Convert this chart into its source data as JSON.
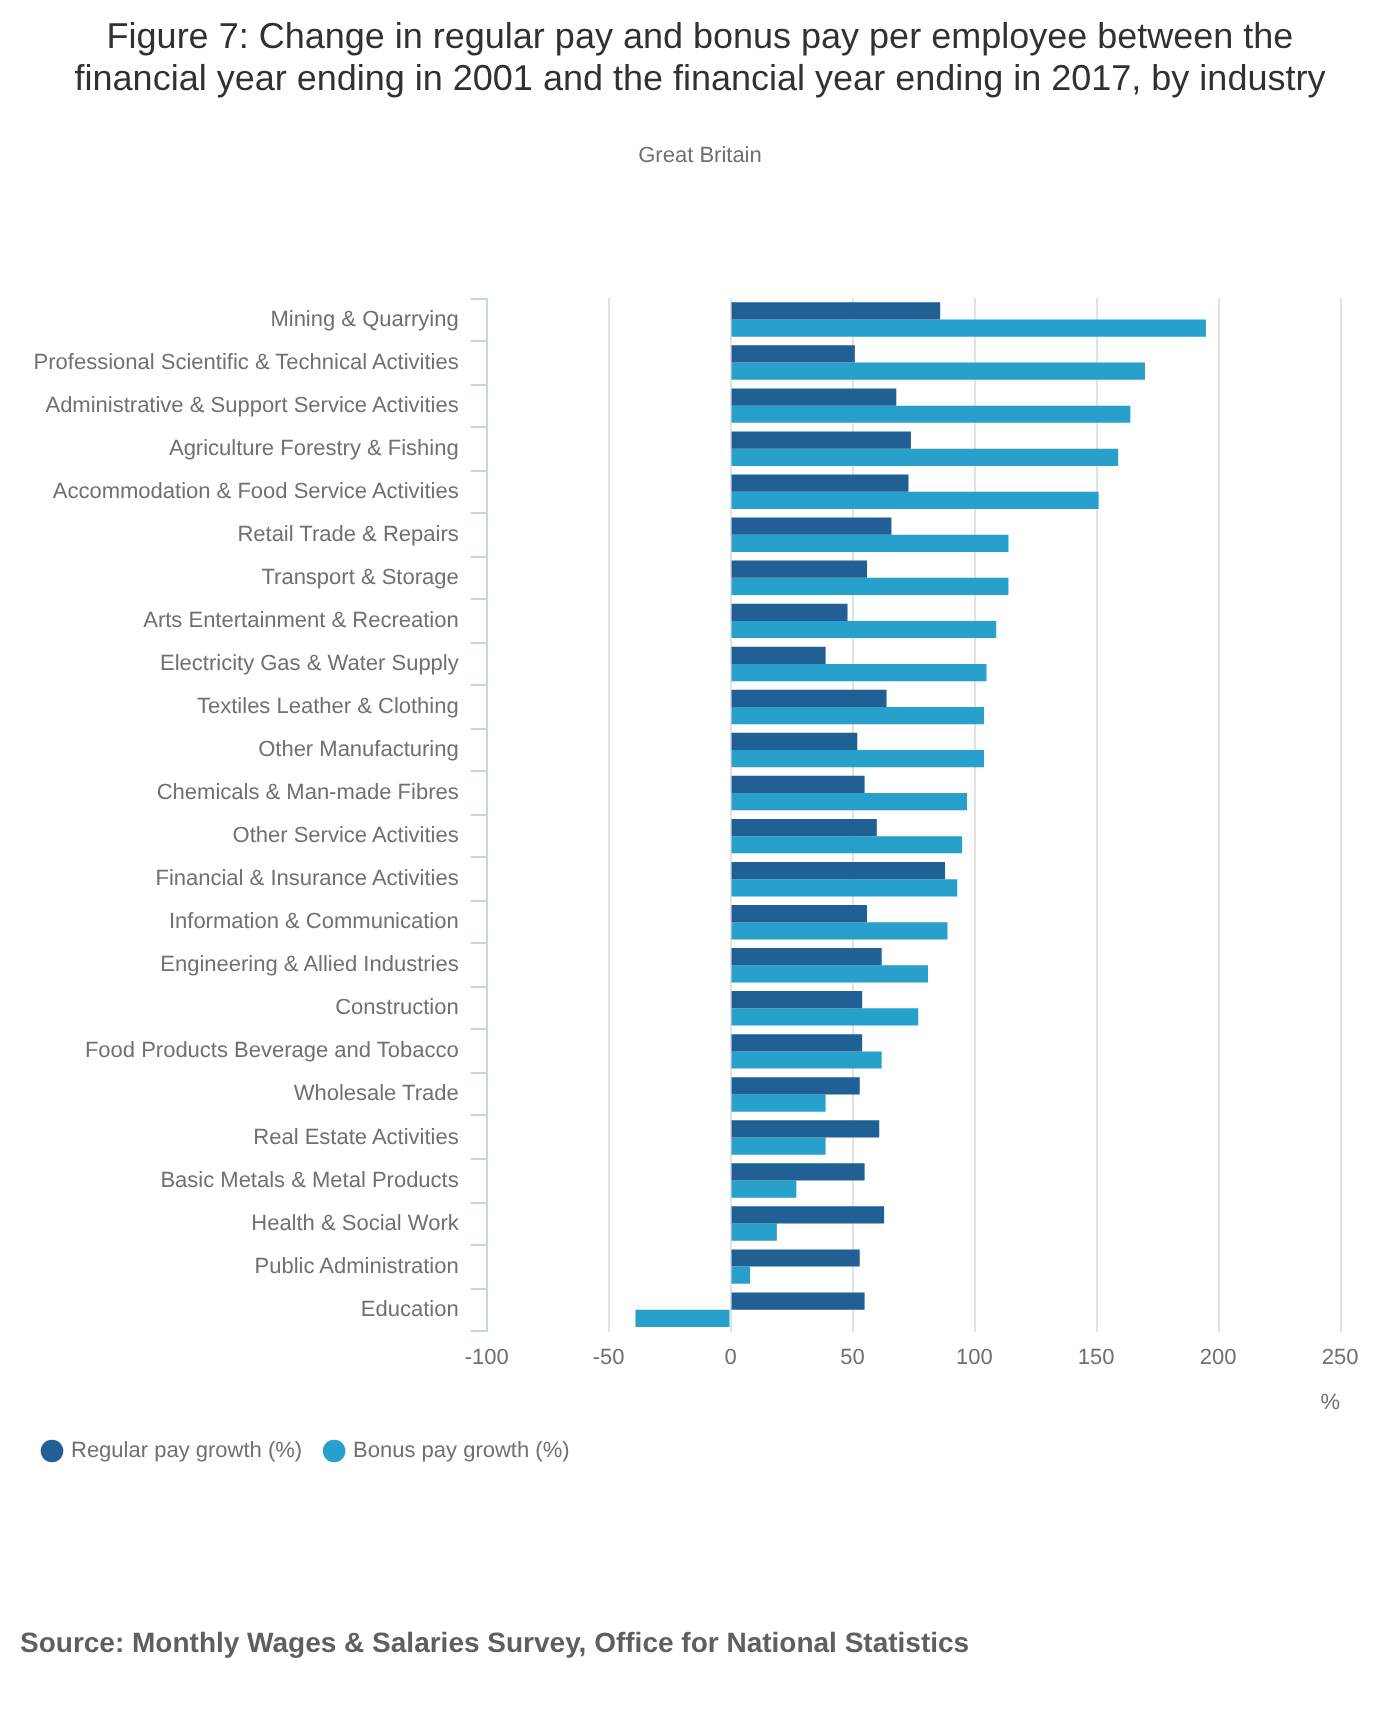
{
  "chart_data": {
    "type": "bar",
    "orientation": "horizontal",
    "title": "Figure 7: Change in regular pay and bonus pay per employee between the financial year ending in 2001 and the financial year ending in 2017, by industry",
    "subtitle": "Great Britain",
    "xlabel": "%",
    "categories": [
      "Mining & Quarrying",
      "Professional Scientific & Technical Activities",
      "Administrative & Support Service Activities",
      "Agriculture Forestry & Fishing",
      "Accommodation & Food Service Activities",
      "Retail Trade & Repairs",
      "Transport & Storage",
      "Arts Entertainment & Recreation",
      "Electricity Gas & Water Supply",
      "Textiles Leather & Clothing",
      "Other Manufacturing",
      "Chemicals & Man-made Fibres",
      "Other Service Activities",
      "Financial & Insurance Activities",
      "Information & Communication",
      "Engineering & Allied Industries",
      "Construction",
      "Food Products Beverage and Tobacco",
      "Wholesale Trade",
      "Real Estate Activities",
      "Basic Metals & Metal Products",
      "Health & Social Work",
      "Public Administration",
      "Education"
    ],
    "series": [
      {
        "name": "Regular pay growth (%)",
        "color": "#206095",
        "values": [
          86,
          51,
          68,
          74,
          73,
          66,
          56,
          48,
          39,
          64,
          52,
          55,
          60,
          88,
          56,
          62,
          54,
          54,
          53,
          61,
          55,
          63,
          53,
          55
        ]
      },
      {
        "name": "Bonus pay growth (%)",
        "color": "#27a0cc",
        "values": [
          195,
          170,
          164,
          159,
          151,
          114,
          114,
          109,
          105,
          104,
          104,
          97,
          95,
          93,
          89,
          81,
          77,
          62,
          39,
          39,
          27,
          19,
          8,
          -39
        ]
      }
    ],
    "xlim": [
      -100,
      250
    ],
    "xticks": [
      -100,
      -50,
      0,
      50,
      100,
      150,
      200,
      250
    ],
    "grid": "x",
    "legend": "bottom left",
    "annotations": [
      "Source: Monthly Wages & Salaries Survey, Office for National Statistics"
    ]
  }
}
